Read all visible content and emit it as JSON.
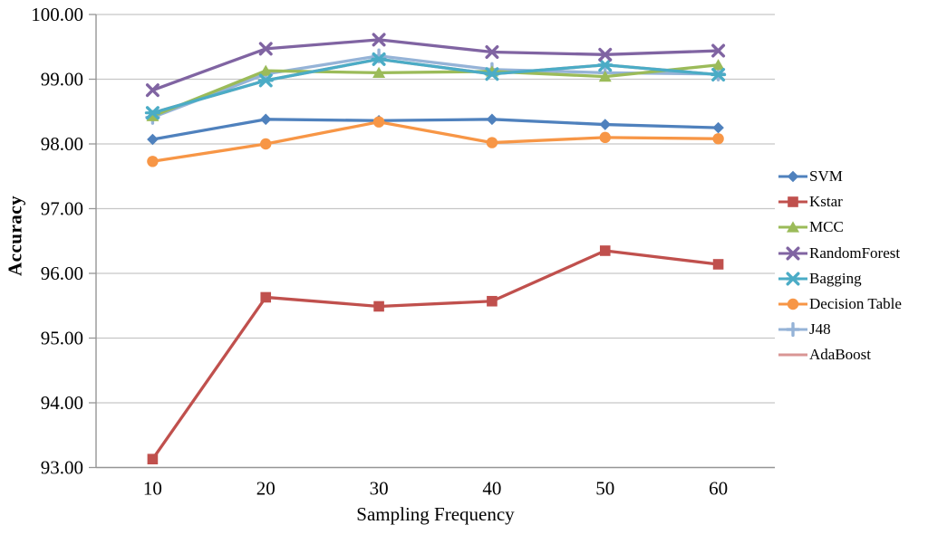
{
  "chart_data": {
    "type": "line",
    "title": "",
    "xlabel": "Sampling Frequency",
    "ylabel": "Accuracy",
    "categories": [
      10,
      20,
      30,
      40,
      50,
      60
    ],
    "x_tick_labels": [
      "10",
      "20",
      "30",
      "40",
      "50",
      "60"
    ],
    "y_tick_labels": [
      "93.00",
      "94.00",
      "95.00",
      "96.00",
      "97.00",
      "98.00",
      "99.00",
      "100.00"
    ],
    "ylim": [
      93,
      100
    ],
    "y_step": 1,
    "grid": true,
    "legend_position": "right",
    "series": [
      {
        "name": "SVM",
        "color": "#4F81BD",
        "marker": "diamond",
        "values": [
          98.07,
          98.38,
          98.36,
          98.38,
          98.3,
          98.25
        ]
      },
      {
        "name": "Kstar",
        "color": "#C0504D",
        "marker": "square",
        "values": [
          93.13,
          95.63,
          95.49,
          95.57,
          96.35,
          96.14
        ]
      },
      {
        "name": "MCC",
        "color": "#9BBB59",
        "marker": "triangle",
        "values": [
          98.43,
          99.13,
          99.1,
          99.12,
          99.04,
          99.22
        ]
      },
      {
        "name": "RandomForest",
        "color": "#8064A2",
        "marker": "x",
        "values": [
          98.83,
          99.47,
          99.61,
          99.42,
          99.38,
          99.44
        ]
      },
      {
        "name": "Bagging",
        "color": "#4BACC6",
        "marker": "star",
        "values": [
          98.48,
          98.98,
          99.31,
          99.08,
          99.22,
          99.07
        ]
      },
      {
        "name": "Decision Table",
        "color": "#F79646",
        "marker": "circle",
        "values": [
          97.73,
          98.0,
          98.34,
          98.02,
          98.1,
          98.08
        ]
      },
      {
        "name": "J48",
        "color": "#95B3D7",
        "marker": "plus",
        "values": [
          98.41,
          99.08,
          99.36,
          99.15,
          99.1,
          99.08
        ]
      },
      {
        "name": "AdaBoost",
        "color": "#D99694",
        "marker": "none",
        "values": [
          98.48,
          98.98,
          99.31,
          99.08,
          99.22,
          99.07
        ],
        "hidden_in_plot": true
      }
    ],
    "draw_order": [
      7,
      6,
      2,
      4,
      0,
      5,
      3,
      1
    ]
  },
  "colors": {
    "background": "#ffffff",
    "axis": "#969696",
    "gridline": "#C6C6C6",
    "text": "#000000"
  }
}
